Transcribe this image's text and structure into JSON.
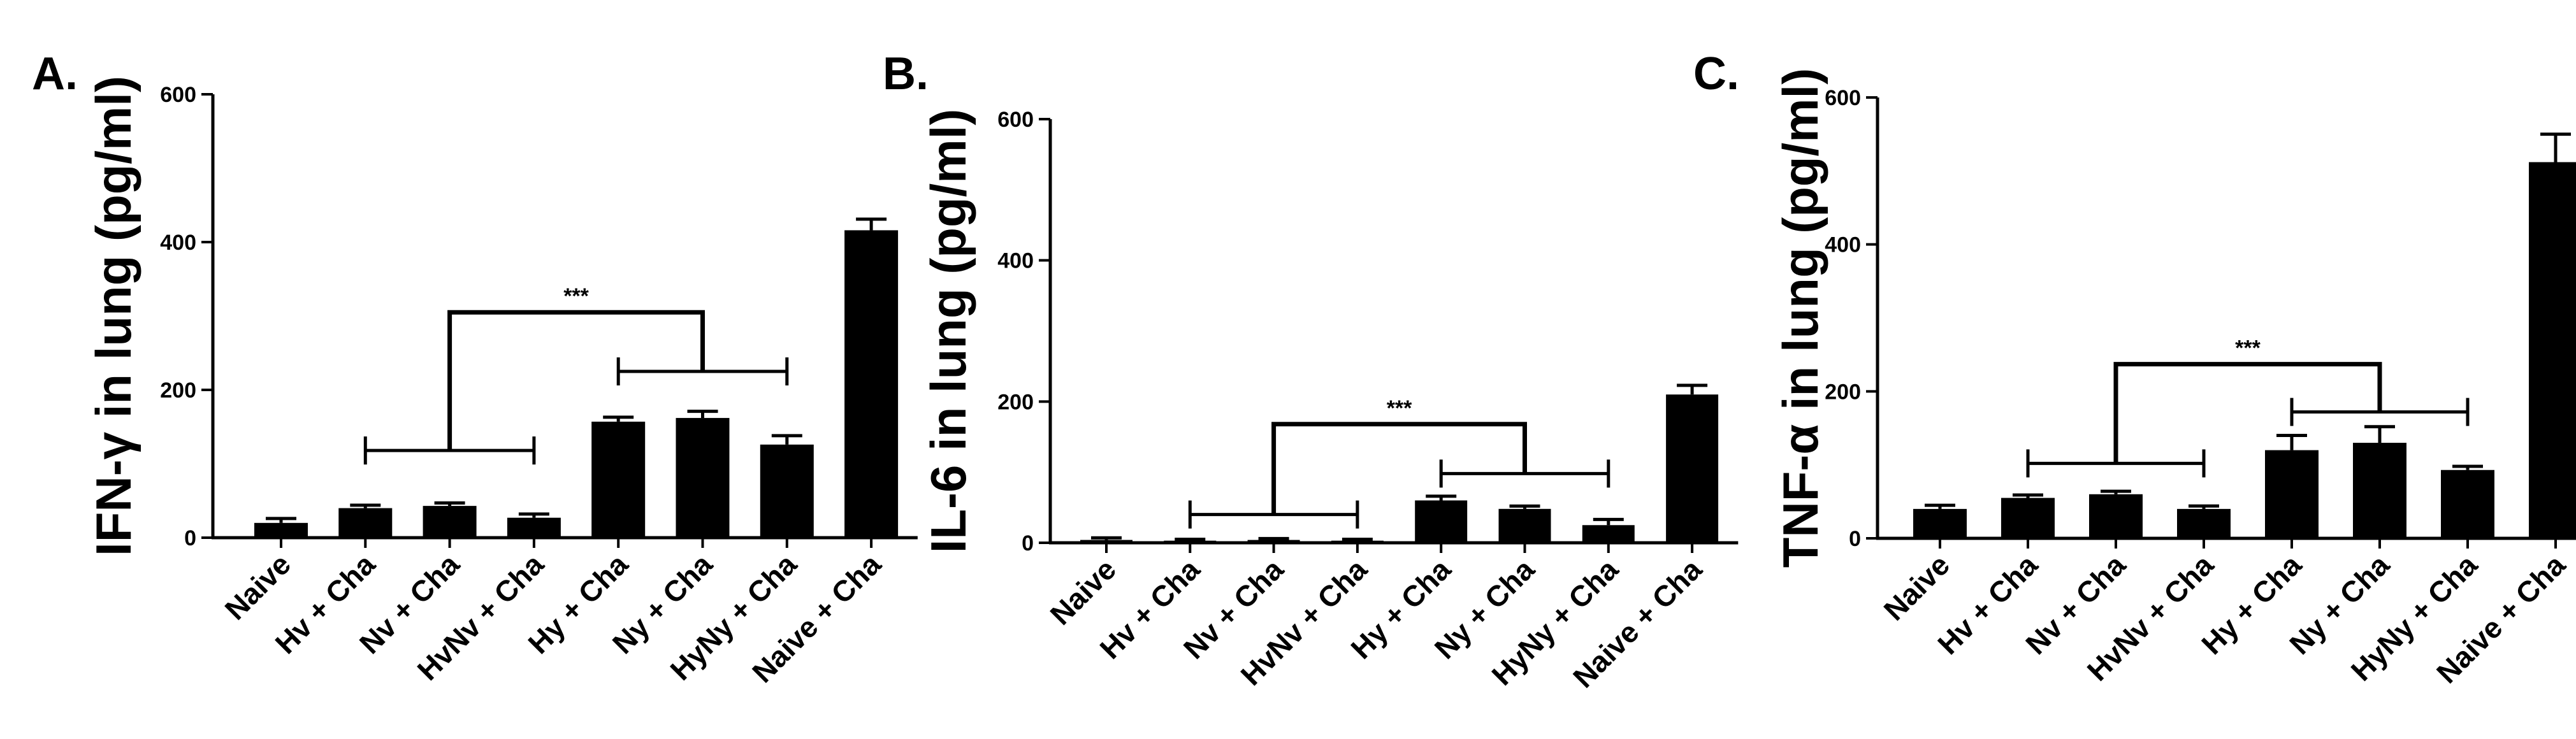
{
  "colors": {
    "bar": "#000000",
    "axis": "#000000",
    "background": "#ffffff"
  },
  "chart_data": [
    {
      "type": "bar",
      "panel_label": "A.",
      "ylabel": "IFN-γ in lung (pg/ml)",
      "ylim": [
        0,
        600
      ],
      "yticks": [
        "0",
        "200",
        "400",
        "600"
      ],
      "categories": [
        "Naive",
        "Hv + Cha",
        "Nv + Cha",
        "HvNv + Cha",
        "Hy + Cha",
        "Ny + Cha",
        "HyNy + Cha",
        "Naive + Cha"
      ],
      "values": [
        20,
        40,
        43,
        27,
        157,
        162,
        126,
        416
      ],
      "errors": [
        6,
        4,
        4,
        5,
        6,
        9,
        12,
        15
      ],
      "grid": false,
      "significance": {
        "label": "***",
        "left_group": [
          1,
          3
        ],
        "right_group": [
          4,
          6
        ],
        "left_y": 118,
        "right_y": 225,
        "top_y": 305
      }
    },
    {
      "type": "bar",
      "panel_label": "B.",
      "ylabel": "IL-6 in lung (pg/ml)",
      "ylim": [
        0,
        600
      ],
      "yticks": [
        "0",
        "200",
        "400",
        "600"
      ],
      "categories": [
        "Naive",
        "Hv + Cha",
        "Nv + Cha",
        "HvNv + Cha",
        "Hy + Cha",
        "Ny + Cha",
        "HyNy + Cha",
        "Naive + Cha"
      ],
      "values": [
        4,
        3,
        4,
        3,
        60,
        48,
        25,
        210
      ],
      "errors": [
        3,
        2,
        2,
        2,
        6,
        4,
        8,
        13
      ],
      "grid": false,
      "significance": {
        "label": "***",
        "left_group": [
          1,
          3
        ],
        "right_group": [
          4,
          6
        ],
        "left_y": 40,
        "right_y": 98,
        "top_y": 168
      }
    },
    {
      "type": "bar",
      "panel_label": "C.",
      "ylabel": "TNF-α in lung (pg/ml)",
      "ylim": [
        0,
        600
      ],
      "yticks": [
        "0",
        "200",
        "400",
        "600"
      ],
      "categories": [
        "Naive",
        "Hv + Cha",
        "Nv + Cha",
        "HvNv + Cha",
        "Hy + Cha",
        "Ny + Cha",
        "HyNy + Cha",
        "Naive + Cha"
      ],
      "values": [
        40,
        55,
        60,
        40,
        120,
        130,
        93,
        512
      ],
      "errors": [
        5,
        4,
        4,
        4,
        20,
        22,
        5,
        38
      ],
      "grid": false,
      "significance": {
        "label": "***",
        "left_group": [
          1,
          3
        ],
        "right_group": [
          4,
          6
        ],
        "left_y": 102,
        "right_y": 172,
        "top_y": 237
      }
    }
  ]
}
